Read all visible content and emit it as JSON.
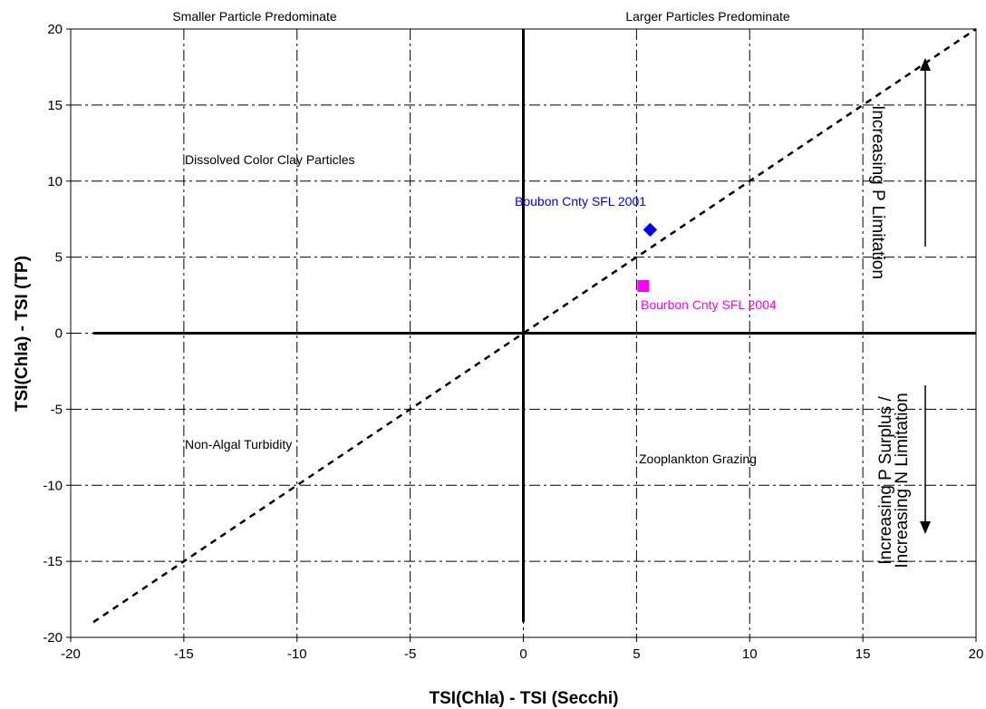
{
  "chart_data": {
    "type": "scatter",
    "xlabel": "TSI(Chla) - TSI (Secchi)",
    "ylabel": "TSI(Chla) - TSI (TP)",
    "xlim": [
      -20,
      20
    ],
    "ylim": [
      -20,
      20
    ],
    "x_ticks": [
      "-20",
      "-15",
      "-10",
      "-5",
      "0",
      "5",
      "10",
      "15",
      "20"
    ],
    "y_ticks": [
      "-20",
      "-15",
      "-10",
      "-5",
      "0",
      "5",
      "10",
      "15",
      "20"
    ],
    "grid": "dashed",
    "reference_line": {
      "style": "dashed",
      "x": [
        -19,
        20
      ],
      "y": [
        -19,
        20
      ]
    },
    "series": [
      {
        "name": "Boubon Cnty SFL 2001",
        "marker": "diamond",
        "color": "#0000ff",
        "points": [
          {
            "x": 5.6,
            "y": 6.8
          }
        ]
      },
      {
        "name": "Bourbon Cnty SFL 2004",
        "marker": "square",
        "color": "#ff00ff",
        "points": [
          {
            "x": 5.3,
            "y": 3.1
          }
        ]
      }
    ],
    "annotations": {
      "top_left": "Smaller Particle Predominate",
      "top_right": "Larger Particles Predominate",
      "upper_left": "Dissolved Color Clay Particles",
      "lower_left": "Non-Algal Turbidity",
      "lower_right": "Zooplankton Grazing",
      "up_arrow": "Increasing P Limitation",
      "down_arrow_line1": "Increasing P Surplus /",
      "down_arrow_line2": "Increasing N Limitation"
    }
  }
}
